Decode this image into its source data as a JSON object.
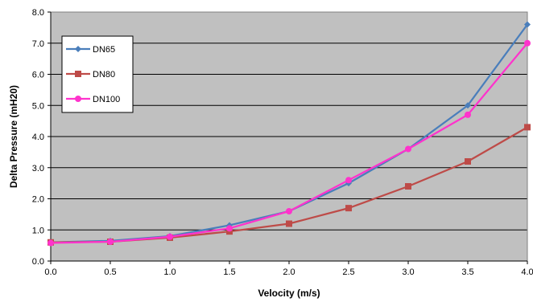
{
  "chart_data": {
    "type": "line",
    "title": "",
    "xlabel": "Velocity  (m/s)",
    "ylabel": "Delta Pressure (mH20)",
    "x": [
      0.0,
      0.5,
      1.0,
      1.5,
      2.0,
      2.5,
      3.0,
      3.5,
      4.0
    ],
    "x_tick_labels": [
      "0.0",
      "0.5",
      "1.0",
      "1.5",
      "2.0",
      "2.5",
      "3.0",
      "3.5",
      "4.0"
    ],
    "y_tick_labels": [
      "0.0",
      "1.0",
      "2.0",
      "3.0",
      "4.0",
      "5.0",
      "6.0",
      "7.0",
      "8.0"
    ],
    "xlim": [
      0,
      4
    ],
    "ylim": [
      0,
      8
    ],
    "grid": "horizontal",
    "plot_background": "#c0c0c0",
    "legend_position": "top-left",
    "series": [
      {
        "name": "DN65",
        "color": "#4a7ebb",
        "marker": "diamond",
        "values": [
          0.6,
          0.65,
          0.8,
          1.15,
          1.6,
          2.5,
          3.6,
          5.0,
          7.6
        ]
      },
      {
        "name": "DN80",
        "color": "#be4b48",
        "marker": "square",
        "values": [
          0.6,
          0.62,
          0.75,
          0.95,
          1.2,
          1.7,
          2.4,
          3.2,
          4.3
        ]
      },
      {
        "name": "DN100",
        "color": "#ff33cc",
        "marker": "circle",
        "values": [
          0.58,
          0.62,
          0.78,
          1.05,
          1.6,
          2.6,
          3.6,
          4.7,
          7.0
        ]
      }
    ]
  }
}
